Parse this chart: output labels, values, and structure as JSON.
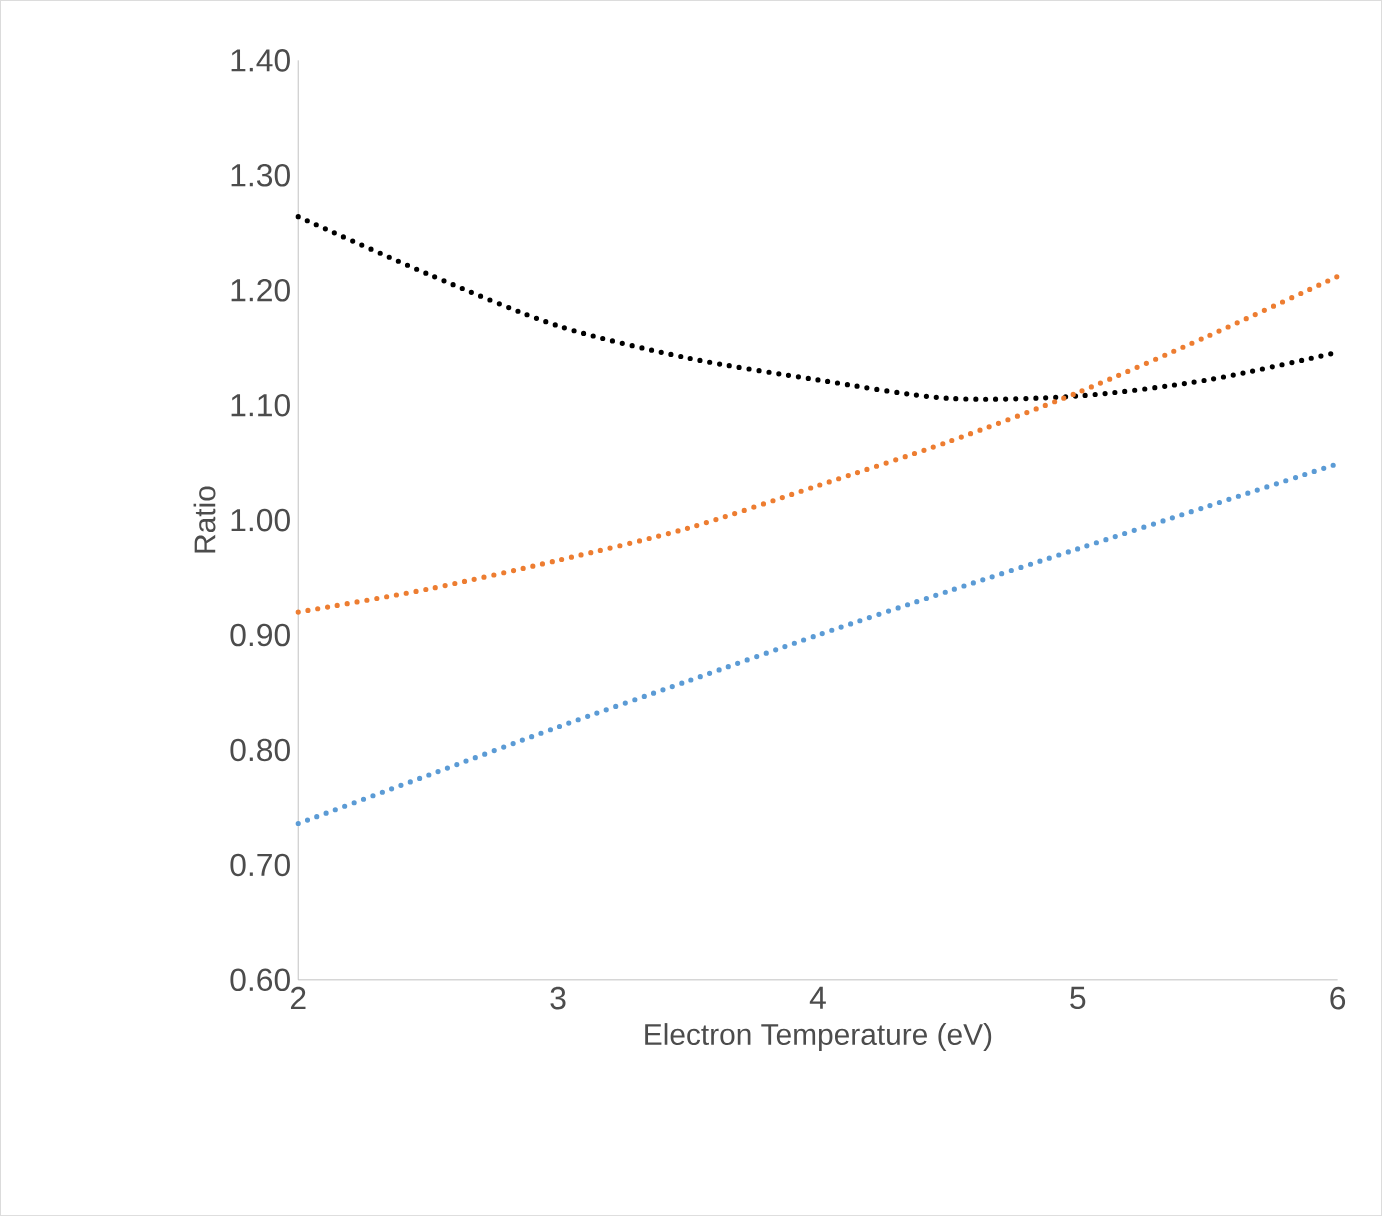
{
  "chart_data": {
    "type": "line",
    "xlabel": "Electron Temperature (eV)",
    "ylabel": "Ratio",
    "xlim": [
      2,
      6
    ],
    "xticks": [
      2,
      3,
      4,
      5,
      6
    ],
    "ylim": [
      0.6,
      1.4
    ],
    "yticks": [
      {
        "value": 0.6,
        "label": "0.60"
      },
      {
        "value": 0.7,
        "label": "0.70"
      },
      {
        "value": 0.8,
        "label": "0.80"
      },
      {
        "value": 0.9,
        "label": "0.90"
      },
      {
        "value": 1.0,
        "label": "1.00"
      },
      {
        "value": 1.1,
        "label": "1.10"
      },
      {
        "value": 1.2,
        "label": "1.20"
      },
      {
        "value": 1.3,
        "label": "1.30"
      },
      {
        "value": 1.4,
        "label": "1.40"
      }
    ],
    "x": [
      2,
      2.5,
      3,
      3.5,
      4,
      4.5,
      5,
      5.5,
      6
    ],
    "series": [
      {
        "color": "#000000",
        "values": [
          1.264,
          1.214,
          1.169,
          1.141,
          1.122,
          1.106,
          1.108,
          1.122,
          1.146
        ]
      },
      {
        "color": "#ed7d31",
        "values": [
          0.92,
          0.94,
          0.965,
          0.993,
          1.03,
          1.068,
          1.111,
          1.16,
          1.212
        ]
      },
      {
        "color": "#5b9bd5",
        "values": [
          0.736,
          0.778,
          0.82,
          0.86,
          0.9,
          0.938,
          0.975,
          1.012,
          1.049
        ]
      }
    ],
    "line_style": "dotted",
    "marker": "none",
    "grid": false
  }
}
